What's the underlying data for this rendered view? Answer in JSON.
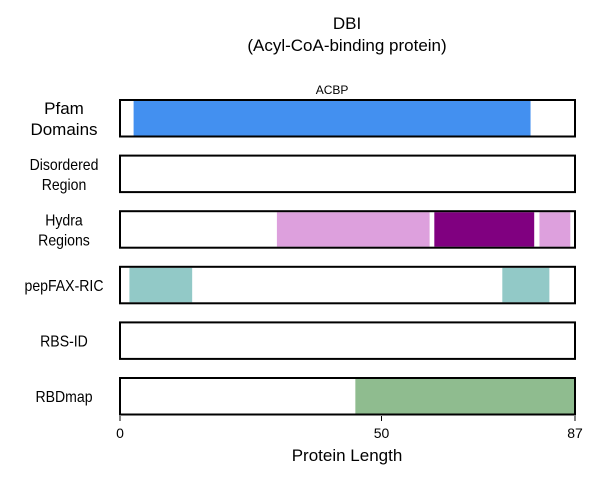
{
  "chart_data": {
    "type": "bar",
    "title": "DBI",
    "subtitle": "(Acyl-CoA-binding protein)",
    "xlabel": "Protein Length",
    "xlim": [
      0,
      87
    ],
    "xticks": [
      0,
      50,
      87
    ],
    "grid": false,
    "tracks": [
      {
        "name": "Pfam\nDomains",
        "segments": [
          {
            "start": 2.6,
            "end": 78.5,
            "color": "#4390f0",
            "label": "ACBP"
          }
        ]
      },
      {
        "name": "Disordered\nRegion",
        "segments": []
      },
      {
        "name": "Hydra\nRegions",
        "segments": [
          {
            "start": 30.0,
            "end": 59.2,
            "color": "#dda0dd"
          },
          {
            "start": 60.1,
            "end": 79.2,
            "color": "#800080"
          },
          {
            "start": 80.2,
            "end": 86.1,
            "color": "#dda0dd"
          }
        ]
      },
      {
        "name": "pepFAX-RIC",
        "segments": [
          {
            "start": 1.8,
            "end": 13.8,
            "color": "#92c9c7"
          },
          {
            "start": 73.1,
            "end": 82.1,
            "color": "#92c9c7"
          }
        ]
      },
      {
        "name": "RBS-ID",
        "segments": []
      },
      {
        "name": "RBDmap",
        "segments": [
          {
            "start": 45.0,
            "end": 87.0,
            "color": "#8fbc8f"
          }
        ]
      }
    ]
  }
}
